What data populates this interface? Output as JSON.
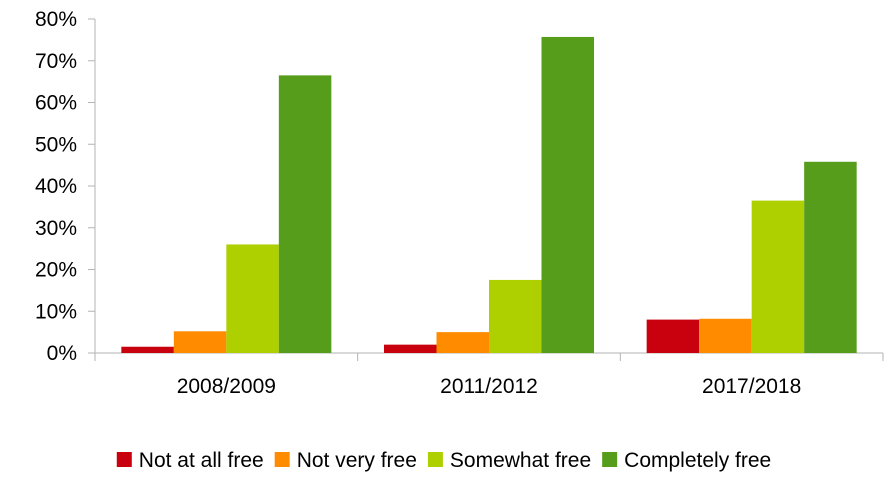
{
  "chart_data": {
    "type": "bar",
    "categories": [
      "2008/2009",
      "2011/2012",
      "2017/2018"
    ],
    "series": [
      {
        "name": "Not at all free",
        "color": "#c9000d",
        "values": [
          1.5,
          2.0,
          8.0
        ]
      },
      {
        "name": "Not very free",
        "color": "#ff8c00",
        "values": [
          5.2,
          5.0,
          8.2
        ]
      },
      {
        "name": "Somewhat free",
        "color": "#aecf00",
        "values": [
          26.0,
          17.5,
          36.5
        ]
      },
      {
        "name": "Completely free",
        "color": "#579d1c",
        "values": [
          66.5,
          75.7,
          45.8
        ]
      }
    ],
    "ylim": [
      0,
      80
    ],
    "yticks": [
      0,
      10,
      20,
      30,
      40,
      50,
      60,
      70,
      80
    ],
    "ytick_labels": [
      "0%",
      "10%",
      "20%",
      "30%",
      "40%",
      "50%",
      "60%",
      "70%",
      "80%"
    ],
    "title": "",
    "xlabel": "",
    "ylabel": "",
    "grid": false,
    "legend_position": "bottom"
  }
}
